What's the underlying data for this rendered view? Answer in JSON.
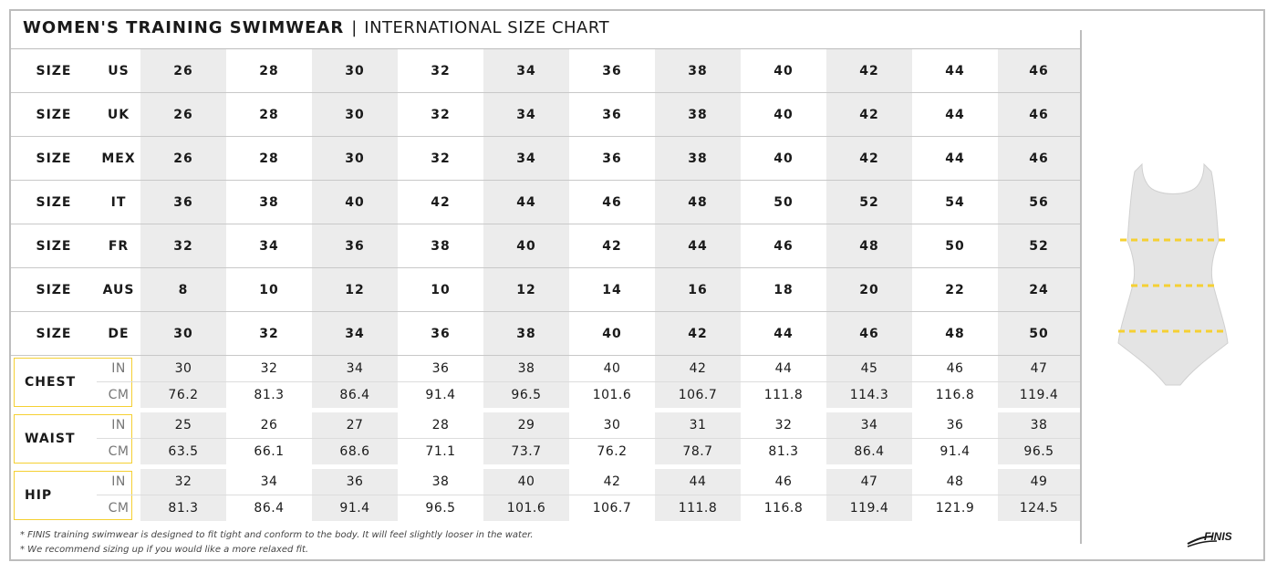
{
  "header": {
    "title_bold": "WOMEN'S TRAINING SWIMWEAR",
    "separator": "|",
    "title_light": "INTERNATIONAL SIZE CHART"
  },
  "size_rows": [
    {
      "label": "SIZE",
      "system": "US",
      "values": [
        "26",
        "28",
        "30",
        "32",
        "34",
        "36",
        "38",
        "40",
        "42",
        "44",
        "46"
      ]
    },
    {
      "label": "SIZE",
      "system": "UK",
      "values": [
        "26",
        "28",
        "30",
        "32",
        "34",
        "36",
        "38",
        "40",
        "42",
        "44",
        "46"
      ]
    },
    {
      "label": "SIZE",
      "system": "MEX",
      "values": [
        "26",
        "28",
        "30",
        "32",
        "34",
        "36",
        "38",
        "40",
        "42",
        "44",
        "46"
      ]
    },
    {
      "label": "SIZE",
      "system": "IT",
      "values": [
        "36",
        "38",
        "40",
        "42",
        "44",
        "46",
        "48",
        "50",
        "52",
        "54",
        "56"
      ]
    },
    {
      "label": "SIZE",
      "system": "FR",
      "values": [
        "32",
        "34",
        "36",
        "38",
        "40",
        "42",
        "44",
        "46",
        "48",
        "50",
        "52"
      ]
    },
    {
      "label": "SIZE",
      "system": "AUS",
      "values": [
        "8",
        "10",
        "12",
        "10",
        "12",
        "14",
        "16",
        "18",
        "20",
        "22",
        "24"
      ]
    },
    {
      "label": "SIZE",
      "system": "DE",
      "values": [
        "30",
        "32",
        "34",
        "36",
        "38",
        "40",
        "42",
        "44",
        "46",
        "48",
        "50"
      ]
    }
  ],
  "measurements": [
    {
      "label": "CHEST",
      "in_unit": "IN",
      "in": [
        "30",
        "32",
        "34",
        "36",
        "38",
        "40",
        "42",
        "44",
        "45",
        "46",
        "47"
      ],
      "cm_unit": "CM",
      "cm": [
        "76.2",
        "81.3",
        "86.4",
        "91.4",
        "96.5",
        "101.6",
        "106.7",
        "111.8",
        "114.3",
        "116.8",
        "119.4"
      ]
    },
    {
      "label": "WAIST",
      "in_unit": "IN",
      "in": [
        "25",
        "26",
        "27",
        "28",
        "29",
        "30",
        "31",
        "32",
        "34",
        "36",
        "38"
      ],
      "cm_unit": "CM",
      "cm": [
        "63.5",
        "66.1",
        "68.6",
        "71.1",
        "73.7",
        "76.2",
        "78.7",
        "81.3",
        "86.4",
        "91.4",
        "96.5"
      ]
    },
    {
      "label": "HIP",
      "in_unit": "IN",
      "in": [
        "32",
        "34",
        "36",
        "38",
        "40",
        "42",
        "44",
        "46",
        "47",
        "48",
        "49"
      ],
      "cm_unit": "CM",
      "cm": [
        "81.3",
        "86.4",
        "91.4",
        "96.5",
        "101.6",
        "106.7",
        "111.8",
        "116.8",
        "119.4",
        "121.9",
        "124.5"
      ]
    }
  ],
  "notes": [
    "* FINIS training swimwear is designed to fit tight and conform to the body. It will feel slightly looser in the water.",
    "* We recommend sizing up if you would like a more relaxed fit."
  ],
  "brand": {
    "logo_text": "FINIS"
  },
  "colors": {
    "accent_yellow": "#f5d033",
    "shade_gray": "#ececec",
    "border_gray": "#bdbdbd"
  },
  "icons": {
    "illustration": "swimsuit-icon",
    "logo": "finis-logo"
  }
}
